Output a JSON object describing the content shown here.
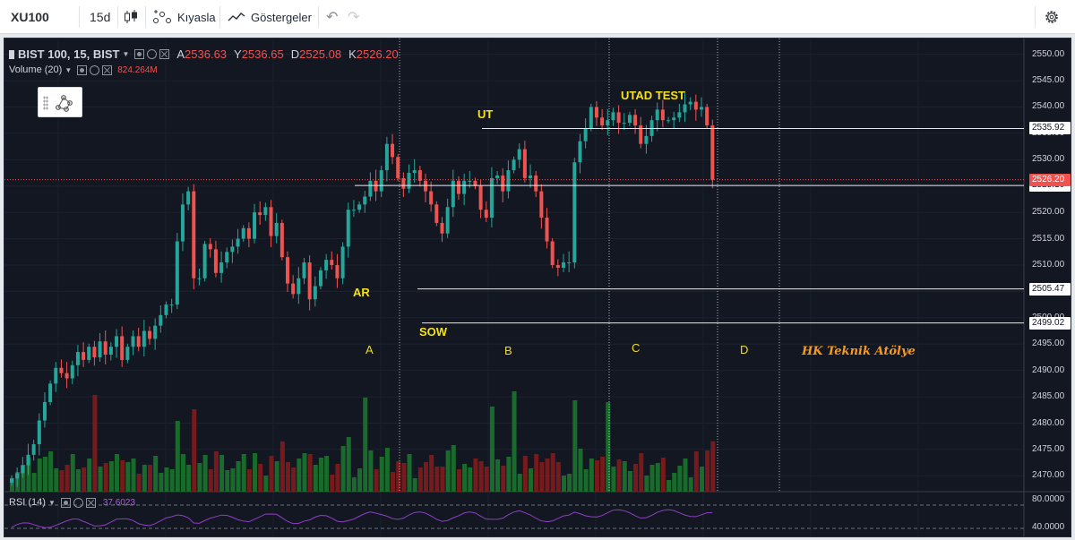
{
  "toolbar": {
    "symbol": "XU100",
    "interval": "15d",
    "compare_label": "Kıyasla",
    "indicators_label": "Göstergeler"
  },
  "legend": {
    "symbol_text": "BIST 100, 15, BIST",
    "open_label": "A",
    "open_value": "2536.63",
    "high_label": "Y",
    "high_value": "2536.65",
    "low_label": "D",
    "low_value": "2525.08",
    "close_label": "K",
    "close_value": "2526.20",
    "volume_label": "Volume (20)",
    "volume_value": "824.264M",
    "rsi_label": "RSI (14)",
    "rsi_value": "37.6023"
  },
  "annotations": {
    "ar": "AR",
    "sow": "SOW",
    "ut": "UT",
    "utad": "UTAD TEST",
    "zone_a": "A",
    "zone_b": "B",
    "zone_c": "C",
    "zone_d": "D",
    "brand": "HK Teknik Atölye"
  },
  "price_axis": {
    "ticks": [
      "2550.00",
      "2545.00",
      "2540.00",
      "2535.00",
      "2530.00",
      "2525.00",
      "2520.00",
      "2515.00",
      "2510.00",
      "2505.00",
      "2500.00",
      "2495.00",
      "2490.00",
      "2485.00",
      "2480.00",
      "2475.00",
      "2470.00"
    ],
    "levels": [
      {
        "label": "2535.92",
        "value": 2535.92
      },
      {
        "label": "2525.10",
        "value": 2525.1
      },
      {
        "label": "2505.47",
        "value": 2505.47
      },
      {
        "label": "2499.02",
        "value": 2499.02
      }
    ],
    "last_price": "2526.20",
    "rsi_ticks": [
      "80.0000",
      "40.0000"
    ]
  },
  "colors": {
    "background": "#131722",
    "up": "#26a69a",
    "down": "#ef5350",
    "vol_up": "#1b7a2e",
    "vol_down": "#8a1b1b",
    "level_line": "#e8e8e8",
    "annotation": "#f5e11a",
    "brand": "#f79a1e",
    "rsi": "#8e3fc4"
  },
  "chart_data": {
    "type": "candlestick",
    "title": "BIST 100, 15, BIST",
    "ylim": [
      2467,
      2553
    ],
    "horizontal_levels": [
      2535.92,
      2525.1,
      2505.47,
      2499.02
    ],
    "last_price": 2526.2,
    "phase_labels": [
      "A",
      "B",
      "C",
      "D"
    ],
    "events": [
      {
        "label": "AR",
        "price": 2525.1
      },
      {
        "label": "SOW",
        "price": 2499.0
      },
      {
        "label": "UT",
        "price": 2535.9
      },
      {
        "label": "UTAD TEST",
        "price": 2543.0
      }
    ],
    "close": [
      2469.5,
      2470.5,
      2472,
      2474,
      2476,
      2480.5,
      2484,
      2487.5,
      2490.5,
      2489.5,
      2488.5,
      2491,
      2493.5,
      2492,
      2494.5,
      2492.5,
      2495.5,
      2493,
      2494.5,
      2496.5,
      2492,
      2494.5,
      2496.5,
      2494.5,
      2497.5,
      2496,
      2498.5,
      2500.5,
      2502.5,
      2502.5,
      2514.5,
      2521.5,
      2524,
      2507.5,
      2507.5,
      2514,
      2513,
      2508.5,
      2510.5,
      2512.5,
      2513.5,
      2515,
      2517,
      2515,
      2520,
      2519.5,
      2521,
      2515.5,
      2518,
      2511.5,
      2506.5,
      2504.5,
      2507.5,
      2510.5,
      2503.5,
      2506,
      2509,
      2511,
      2510,
      2507.5,
      2513.5,
      2520.5,
      2520.5,
      2521.5,
      2523,
      2526,
      2524,
      2528,
      2533,
      2530.5,
      2526.5,
      2524.5,
      2527.5,
      2528,
      2526,
      2524,
      2521.5,
      2518,
      2516,
      2521,
      2526,
      2523.5,
      2526,
      2526,
      2525,
      2520.5,
      2519,
      2526.5,
      2527,
      2524,
      2528,
      2530,
      2532,
      2526.5,
      2527,
      2524,
      2519,
      2514.5,
      2510,
      2509.5,
      2510.5,
      2510.5,
      2529.5,
      2533.5,
      2536,
      2540,
      2538,
      2536.5,
      2537.5,
      2539,
      2537,
      2537,
      2538.5,
      2536.5,
      2533,
      2534.5,
      2537.5,
      2539.5,
      2537.5,
      2537.5,
      2538,
      2539,
      2540.5,
      2541,
      2539.5,
      2540,
      2536.5,
      2526.2
    ],
    "volume_scale": "relative 0-1",
    "rsi_ticks": [
      80,
      40
    ],
    "rsi_last": 37.6023
  }
}
